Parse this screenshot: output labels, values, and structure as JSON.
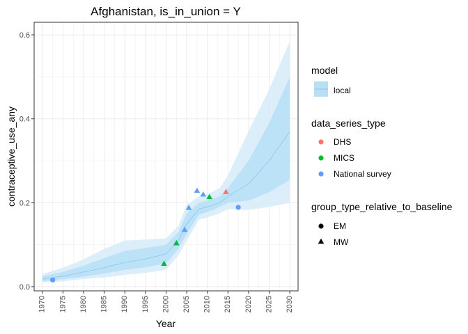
{
  "chart_data": {
    "type": "line",
    "title": "Afghanistan, is_in_union = Y",
    "xlabel": "Year",
    "ylabel": "contraceptive_use_any",
    "xlim": [
      1968,
      2032
    ],
    "ylim": [
      -0.01,
      0.63
    ],
    "xticks": [
      1970,
      1975,
      1980,
      1985,
      1990,
      1995,
      2000,
      2005,
      2010,
      2015,
      2020,
      2025,
      2030
    ],
    "yticks": [
      0.0,
      0.2,
      0.4,
      0.6
    ],
    "ytick_labels": [
      "0.0",
      "0.2",
      "0.4",
      "0.6"
    ],
    "grid": true,
    "legend_position": "right",
    "colors": {
      "ribbon_outer": "#d7ecfa",
      "ribbon_inner": "#b7e0f5",
      "median_line": "#8fc5ec",
      "DHS": "#f8766d",
      "MICS": "#00ba38",
      "National survey": "#619cff",
      "panel_border": "#333333",
      "grid": "#ebebeb"
    },
    "model": {
      "name": "local",
      "x": [
        1970,
        1975,
        1980,
        1985,
        1990,
        1995,
        2000,
        2003,
        2005,
        2008,
        2010,
        2013,
        2015,
        2020,
        2025,
        2030
      ],
      "median": [
        0.018,
        0.025,
        0.035,
        0.045,
        0.058,
        0.066,
        0.078,
        0.11,
        0.15,
        0.185,
        0.19,
        0.2,
        0.215,
        0.245,
        0.3,
        0.37
      ],
      "lower_inner": [
        0.013,
        0.018,
        0.024,
        0.031,
        0.04,
        0.046,
        0.056,
        0.09,
        0.126,
        0.172,
        0.178,
        0.19,
        0.2,
        0.205,
        0.225,
        0.255
      ],
      "upper_inner": [
        0.025,
        0.035,
        0.05,
        0.068,
        0.085,
        0.092,
        0.1,
        0.13,
        0.175,
        0.2,
        0.205,
        0.215,
        0.235,
        0.3,
        0.39,
        0.5
      ],
      "lower_outer": [
        0.01,
        0.013,
        0.018,
        0.022,
        0.028,
        0.033,
        0.04,
        0.075,
        0.11,
        0.16,
        0.165,
        0.175,
        0.185,
        0.183,
        0.19,
        0.2
      ],
      "upper_outer": [
        0.03,
        0.045,
        0.065,
        0.09,
        0.11,
        0.112,
        0.115,
        0.145,
        0.195,
        0.215,
        0.22,
        0.235,
        0.265,
        0.37,
        0.47,
        0.585
      ]
    },
    "points": [
      {
        "year": 1972.5,
        "value": 0.016,
        "data_series_type": "National survey",
        "group": "EM"
      },
      {
        "year": 1999.5,
        "value": 0.055,
        "data_series_type": "MICS",
        "group": "MW"
      },
      {
        "year": 2002.5,
        "value": 0.104,
        "data_series_type": "MICS",
        "group": "MW"
      },
      {
        "year": 2004.5,
        "value": 0.136,
        "data_series_type": "National survey",
        "group": "MW"
      },
      {
        "year": 2005.5,
        "value": 0.188,
        "data_series_type": "National survey",
        "group": "MW"
      },
      {
        "year": 2007.5,
        "value": 0.229,
        "data_series_type": "National survey",
        "group": "MW"
      },
      {
        "year": 2009.0,
        "value": 0.22,
        "data_series_type": "National survey",
        "group": "MW"
      },
      {
        "year": 2010.5,
        "value": 0.214,
        "data_series_type": "MICS",
        "group": "MW"
      },
      {
        "year": 2014.5,
        "value": 0.226,
        "data_series_type": "DHS",
        "group": "MW"
      },
      {
        "year": 2017.5,
        "value": 0.189,
        "data_series_type": "National survey",
        "group": "EM"
      }
    ],
    "legend": {
      "model_title": "model",
      "model_items": [
        "local"
      ],
      "series_title": "data_series_type",
      "series_items": [
        "DHS",
        "MICS",
        "National survey"
      ],
      "group_title": "group_type_relative_to_baseline",
      "group_items": [
        "EM",
        "MW"
      ]
    }
  }
}
